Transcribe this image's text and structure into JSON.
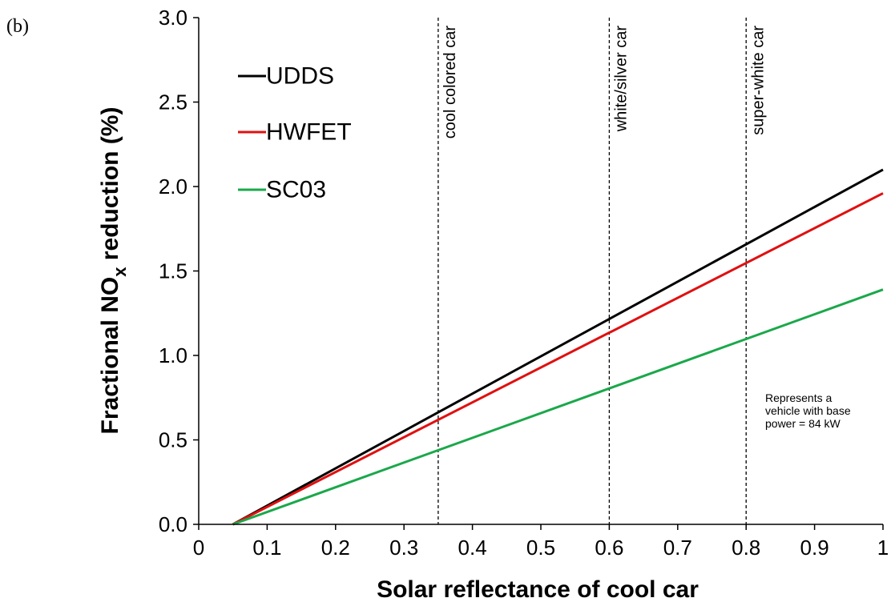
{
  "panel_label": "(b)",
  "chart_data": {
    "type": "line",
    "xlabel": "Solar reflectance of cool car",
    "ylabel_main": "Fractional NO",
    "ylabel_sub": "x",
    "ylabel_tail": " reduction (%)",
    "xlim": [
      0,
      1
    ],
    "ylim": [
      0,
      3
    ],
    "x_ticks": [
      0,
      0.1,
      0.2,
      0.3,
      0.4,
      0.5,
      0.6,
      0.7,
      0.8,
      0.9,
      1
    ],
    "x_tick_labels": [
      "0",
      "0.1",
      "0.2",
      "0.3",
      "0.4",
      "0.5",
      "0.6",
      "0.7",
      "0.8",
      "0.9",
      "1"
    ],
    "y_ticks": [
      0,
      0.5,
      1,
      1.5,
      2,
      2.5,
      3
    ],
    "y_tick_labels": [
      "0.0",
      "0.5",
      "1.0",
      "1.5",
      "2.0",
      "2.5",
      "3.0"
    ],
    "grid": false,
    "legend_position": "top-left",
    "series": [
      {
        "name": "UDDS",
        "color": "#000000",
        "x": [
          0.05,
          1
        ],
        "y": [
          0,
          2.1
        ]
      },
      {
        "name": "HWFET",
        "color": "#e01010",
        "x": [
          0.05,
          1
        ],
        "y": [
          0,
          1.96
        ]
      },
      {
        "name": "SC03",
        "color": "#1aa84a",
        "x": [
          0.05,
          1
        ],
        "y": [
          0,
          1.39
        ]
      }
    ],
    "reference_lines": [
      {
        "x": 0.35,
        "label": "cool colored car"
      },
      {
        "x": 0.6,
        "label": "white/silver car"
      },
      {
        "x": 0.8,
        "label": "super-white car"
      }
    ],
    "note_lines": [
      "Represents a",
      "vehicle with base",
      "power = 84 kW"
    ]
  }
}
